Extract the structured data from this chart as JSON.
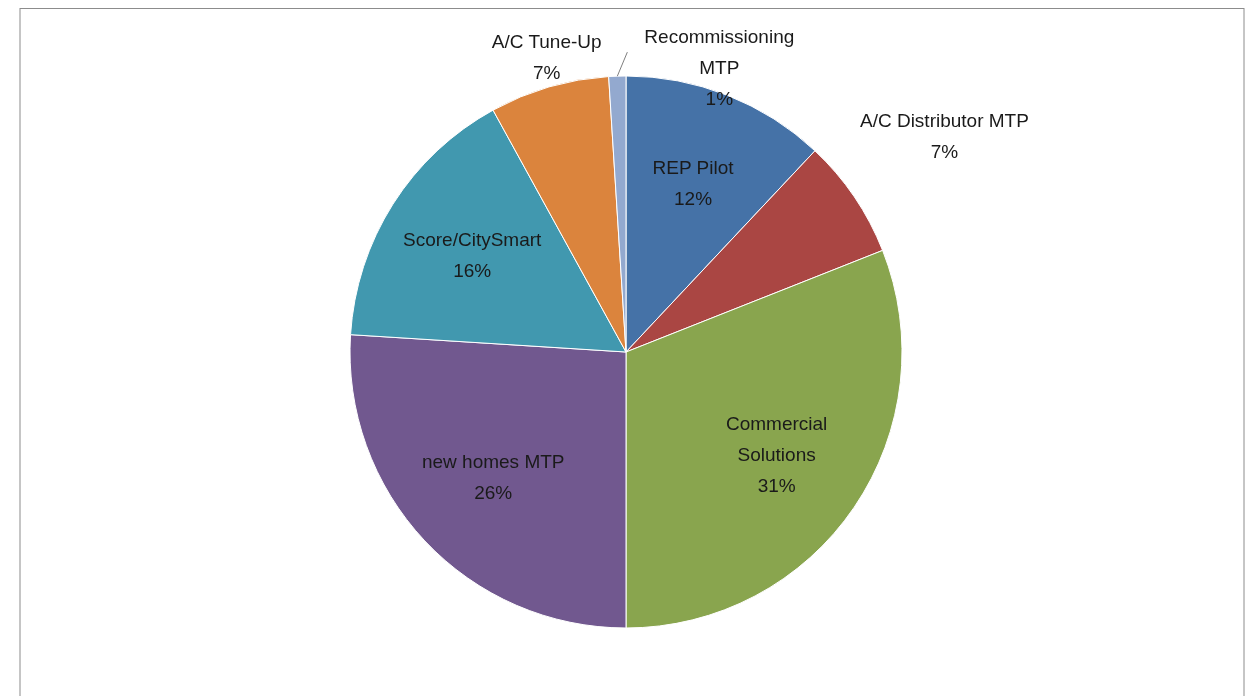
{
  "chart_data": {
    "type": "pie",
    "categories": [
      "REP Pilot",
      "A/C Distributor MTP",
      "Commercial Solutions",
      "new homes MTP",
      "Score/CitySmart",
      "A/C Tune-Up",
      "Recommissioning MTP"
    ],
    "values": [
      12,
      7,
      31,
      26,
      16,
      7,
      1
    ],
    "value_labels": [
      "12%",
      "7%",
      "31%",
      "26%",
      "16%",
      "7%",
      "1%"
    ],
    "colors": [
      "#4572a7",
      "#aa4643",
      "#89a54e",
      "#71588f",
      "#4198af",
      "#db843d",
      "#93a9cf"
    ],
    "legend": false
  }
}
